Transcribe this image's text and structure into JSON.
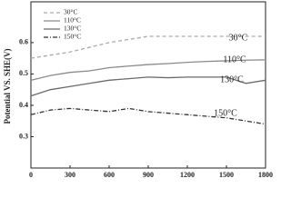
{
  "chart_data": {
    "type": "line",
    "y_label": "Potential VS. SHE(V)",
    "x": [
      0,
      150,
      300,
      450,
      600,
      750,
      900,
      1050,
      1200,
      1350,
      1500,
      1650,
      1800
    ],
    "series": [
      {
        "name": "30°C",
        "color": "#aaaaaa",
        "style": "dashed",
        "values": [
          0.55,
          0.56,
          0.57,
          0.585,
          0.6,
          0.61,
          0.62,
          0.62,
          0.62,
          0.62,
          0.62,
          0.62,
          0.62
        ]
      },
      {
        "name": "110°C",
        "color": "#8a8a8a",
        "style": "solid",
        "values": [
          0.48,
          0.495,
          0.505,
          0.51,
          0.52,
          0.525,
          0.53,
          0.533,
          0.537,
          0.54,
          0.542,
          0.544,
          0.545
        ]
      },
      {
        "name": "130°C",
        "color": "#6a6a6a",
        "style": "solid",
        "values": [
          0.43,
          0.45,
          0.46,
          0.47,
          0.48,
          0.485,
          0.49,
          0.488,
          0.49,
          0.49,
          0.49,
          0.47,
          0.48
        ]
      },
      {
        "name": "150°C",
        "color": "#333333",
        "style": "dashdot",
        "values": [
          0.37,
          0.385,
          0.39,
          0.385,
          0.38,
          0.39,
          0.38,
          0.375,
          0.37,
          0.365,
          0.36,
          0.35,
          0.34
        ]
      }
    ],
    "annotations": [
      "30°C",
      "110°C",
      "130°C",
      "150°C"
    ],
    "xlim": [
      0,
      1800
    ],
    "xticks": [
      0,
      300,
      600,
      900,
      1200,
      1500,
      1800
    ],
    "ylim": [
      0.2,
      0.73
    ],
    "yticks": [
      0.3,
      0.4,
      0.5,
      0.6
    ],
    "legend": "upper-left"
  }
}
